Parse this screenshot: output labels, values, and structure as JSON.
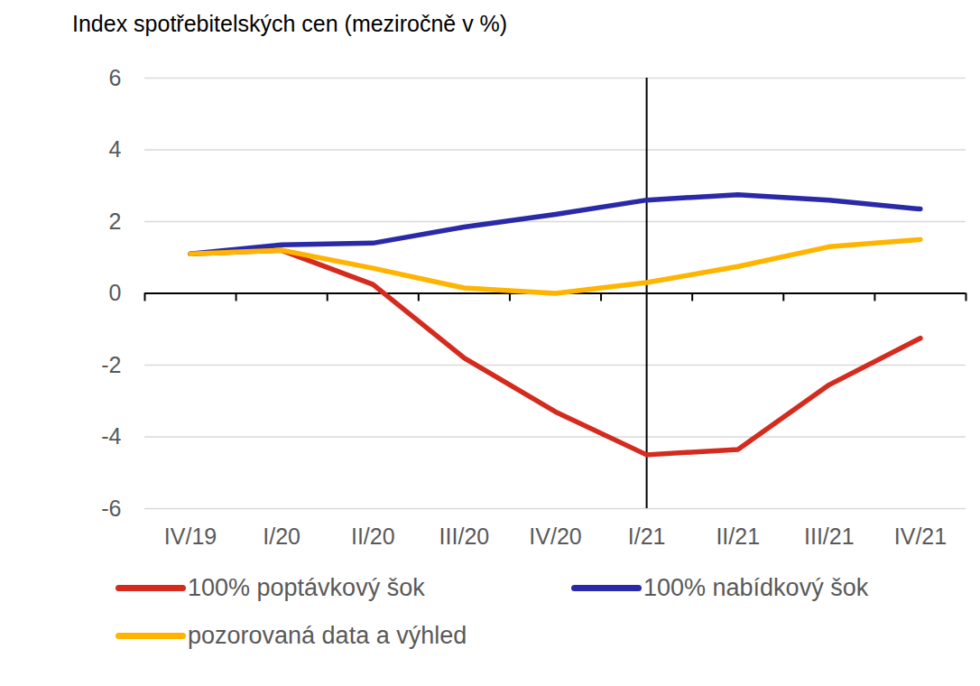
{
  "chart_data": {
    "type": "line",
    "title": "Index spotřebitelských cen (meziročně v %)",
    "categories": [
      "IV/19",
      "I/20",
      "II/20",
      "III/20",
      "IV/20",
      "I/21",
      "II/21",
      "III/21",
      "IV/21"
    ],
    "series": [
      {
        "name": "100% poptávkový šok",
        "color": "#d52b1e",
        "values": [
          1.1,
          1.2,
          0.25,
          -1.8,
          -3.3,
          -4.5,
          -4.35,
          -2.55,
          -1.25
        ]
      },
      {
        "name": "100% nabídkový šok",
        "color": "#2a2aa8",
        "values": [
          1.1,
          1.35,
          1.4,
          1.85,
          2.2,
          2.6,
          2.75,
          2.6,
          2.35
        ]
      },
      {
        "name": "pozorovaná data a výhled",
        "color": "#ffb400",
        "values": [
          1.1,
          1.2,
          0.7,
          0.15,
          0.0,
          0.3,
          0.75,
          1.3,
          1.5
        ]
      }
    ],
    "ylim": [
      -6,
      6
    ],
    "yticks": [
      -6,
      -4,
      -2,
      0,
      2,
      4,
      6
    ],
    "grid": true,
    "forecast_start": "I/21",
    "legend": "bottom"
  }
}
